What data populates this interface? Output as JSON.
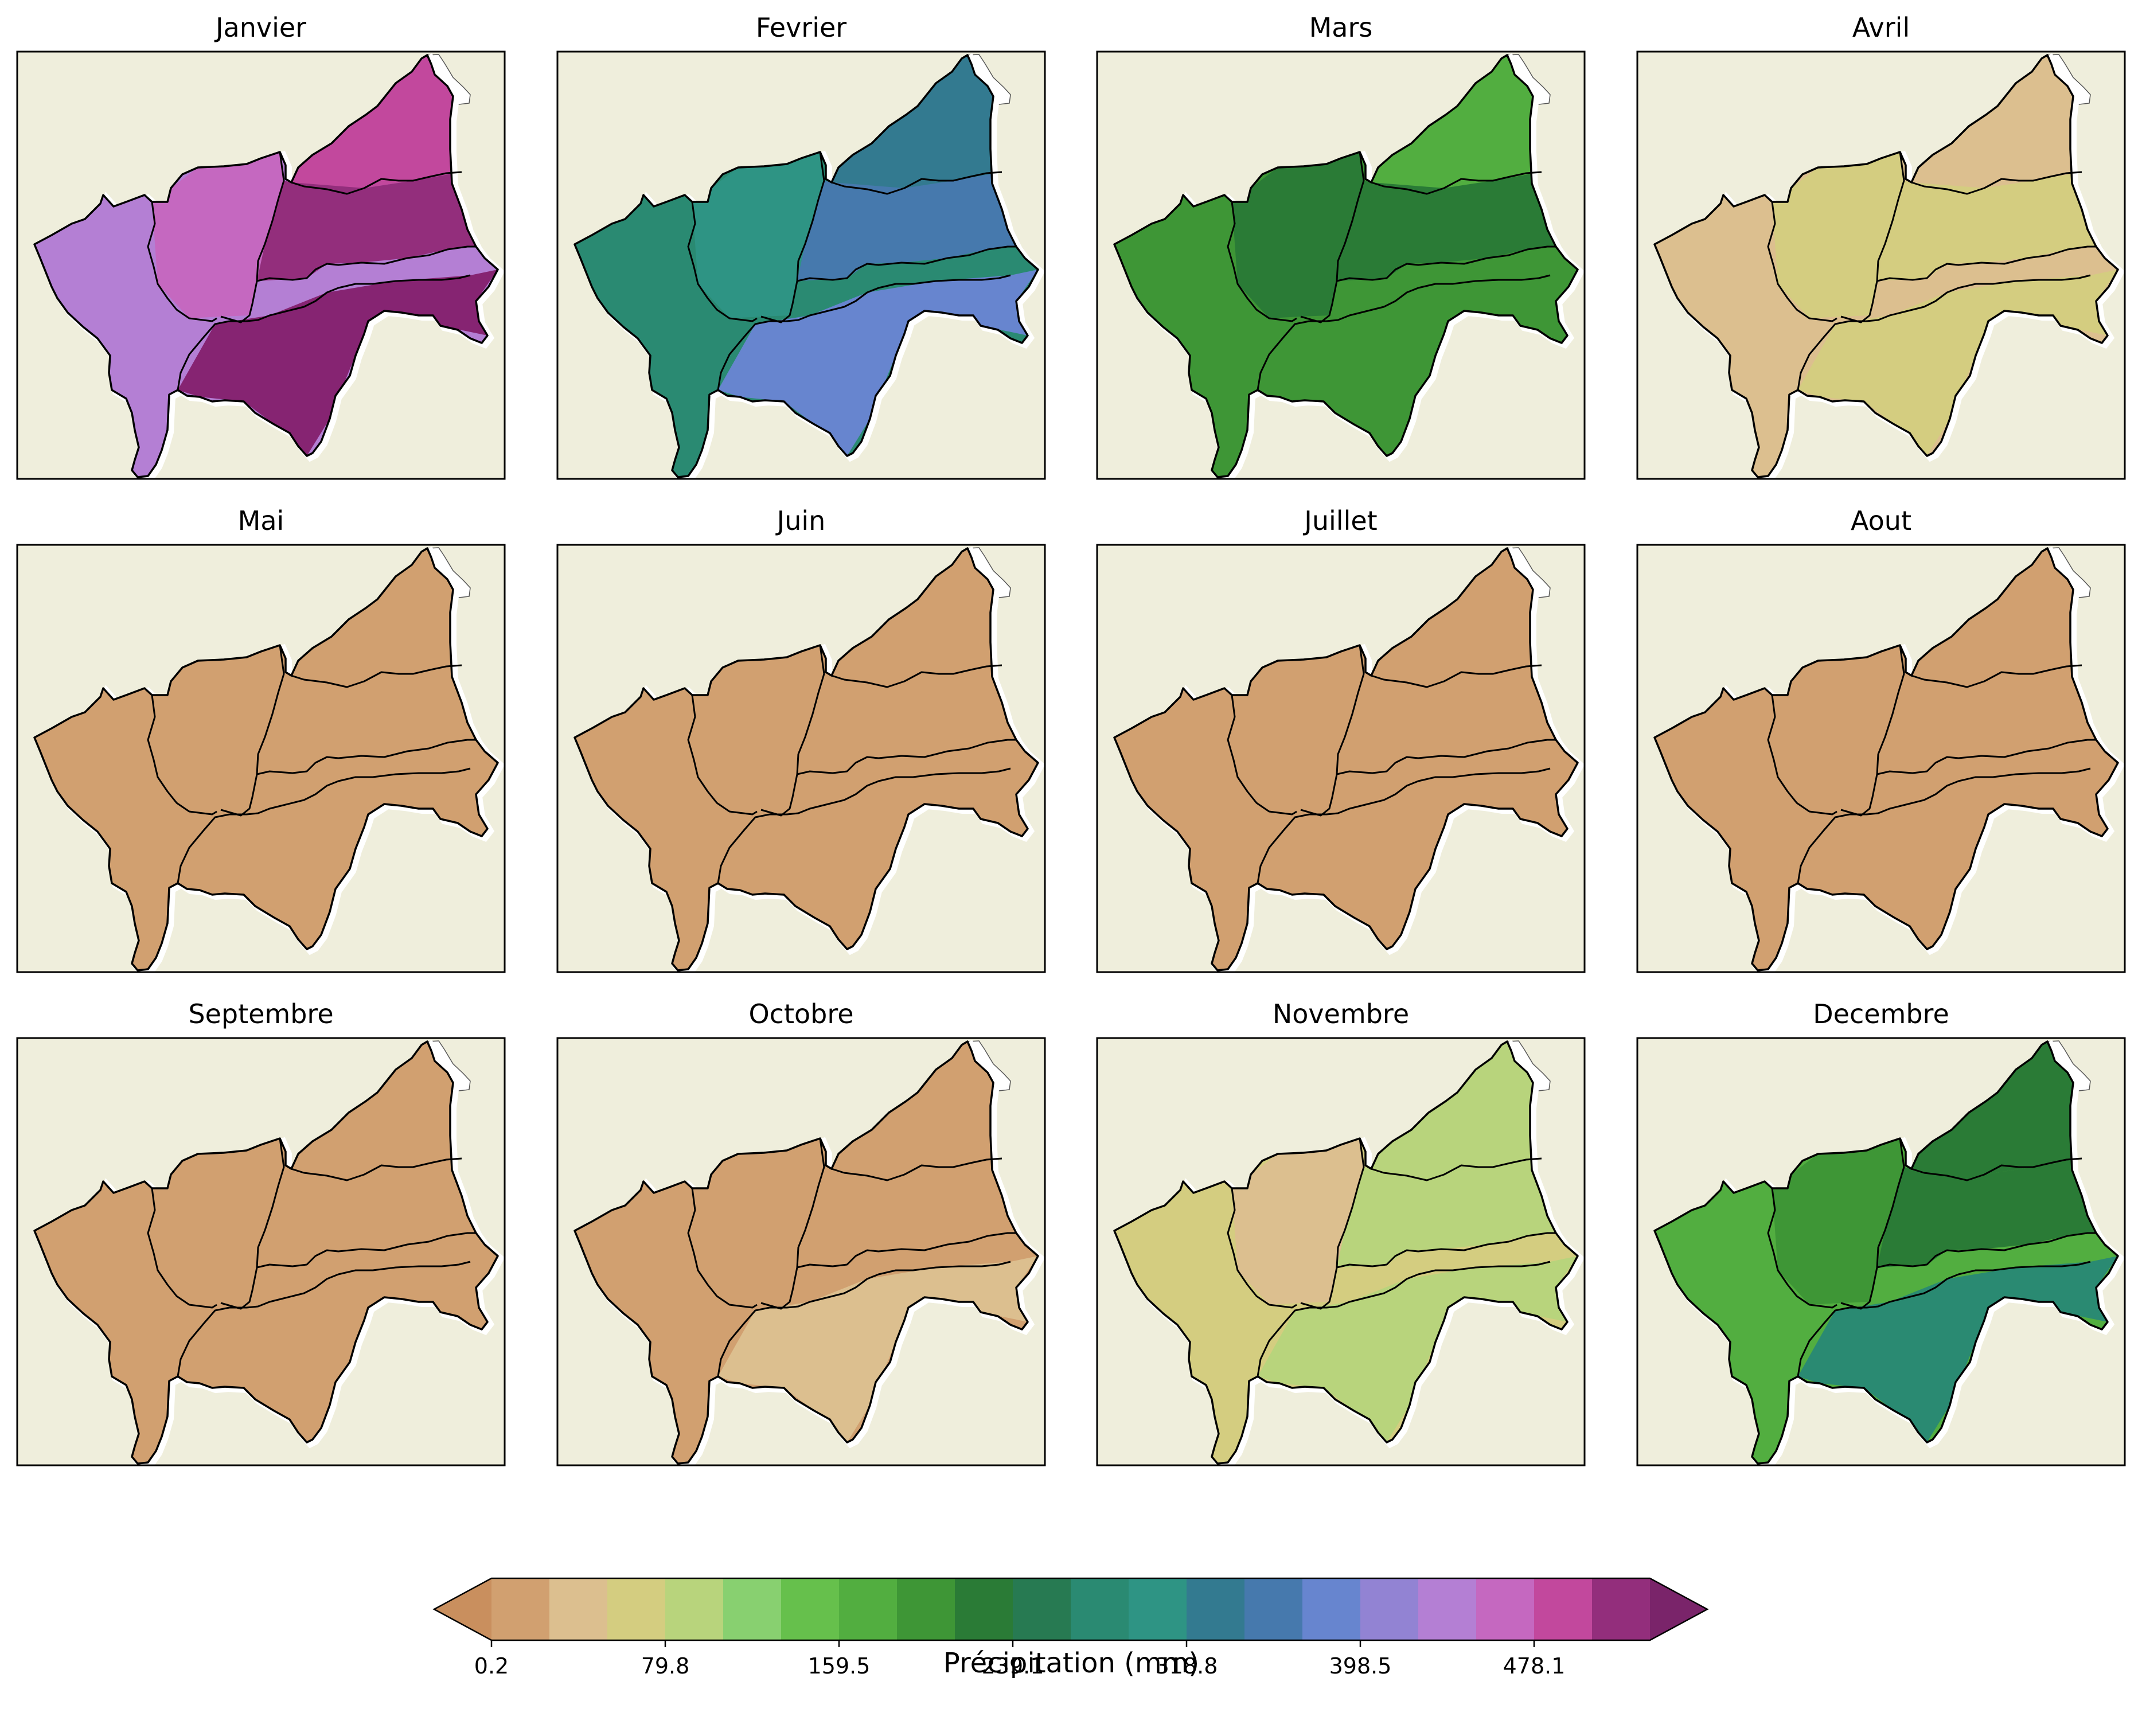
{
  "panels": [
    {
      "title": "Janvier",
      "colors": [
        "#b47fd4",
        "#c568c0",
        "#c2489d",
        "#932e7c",
        "#862472"
      ]
    },
    {
      "title": "Fevrier",
      "colors": [
        "#2a8a72",
        "#2e9484",
        "#337a90",
        "#4679ad",
        "#6785cf"
      ]
    },
    {
      "title": "Mars",
      "colors": [
        "#3e9636",
        "#2a7b36",
        "#52ae40",
        "#2a7b36",
        "#3e9636"
      ]
    },
    {
      "title": "Avril",
      "colors": [
        "#dcbf8f",
        "#d4cd80",
        "#dcbf8f",
        "#d4cd80",
        "#d4cd80"
      ]
    },
    {
      "title": "Mai",
      "colors": [
        "#d1a070",
        "#d1a070",
        "#d1a070",
        "#d1a070",
        "#d1a070"
      ]
    },
    {
      "title": "Juin",
      "colors": [
        "#d1a070",
        "#d1a070",
        "#d1a070",
        "#d1a070",
        "#d1a070"
      ]
    },
    {
      "title": "Juillet",
      "colors": [
        "#d1a070",
        "#d1a070",
        "#d1a070",
        "#d1a070",
        "#d1a070"
      ]
    },
    {
      "title": "Aout",
      "colors": [
        "#d1a070",
        "#d1a070",
        "#d1a070",
        "#d1a070",
        "#d1a070"
      ]
    },
    {
      "title": "Septembre",
      "colors": [
        "#d1a070",
        "#d1a070",
        "#d1a070",
        "#d1a070",
        "#d1a070"
      ]
    },
    {
      "title": "Octobre",
      "colors": [
        "#d1a070",
        "#d1a070",
        "#d1a070",
        "#d1a070",
        "#dcbf8f"
      ]
    },
    {
      "title": "Novembre",
      "colors": [
        "#d4cd80",
        "#dcbf8f",
        "#b8d47c",
        "#b8d47c",
        "#b8d47c"
      ]
    },
    {
      "title": "Decembre",
      "colors": [
        "#52ae40",
        "#3e9636",
        "#2a7b36",
        "#2a7b36",
        "#2a8a72"
      ]
    }
  ],
  "map_background": "#efeedc",
  "colorbar": {
    "label": "Précipitation (mm)",
    "ticks": [
      "0.2",
      "79.8",
      "159.5",
      "239.1",
      "318.8",
      "398.5",
      "478.1"
    ],
    "colors": [
      "#c98f5e",
      "#d1a070",
      "#dcbf8f",
      "#d4cd80",
      "#b8d47c",
      "#88d070",
      "#66c04c",
      "#52ae40",
      "#3e9636",
      "#2a7b36",
      "#277a52",
      "#2a8a72",
      "#2e9484",
      "#337a90",
      "#4679ad",
      "#6785cf",
      "#9283d3",
      "#b47fd4",
      "#c568c0",
      "#c2489d",
      "#932e7c",
      "#7a246a"
    ]
  }
}
